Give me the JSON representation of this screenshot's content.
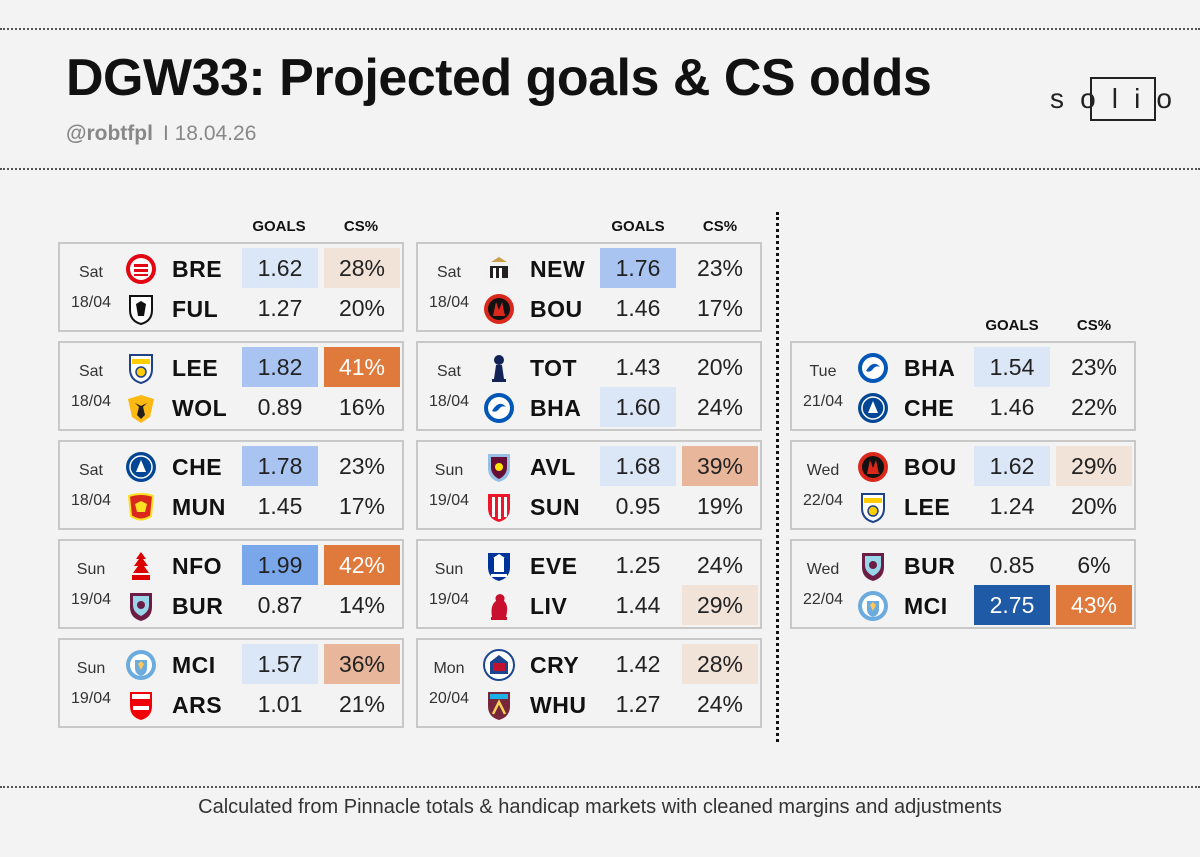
{
  "header": {
    "title": "DGW33: Projected goals & CS odds",
    "handle": "@robtfpl",
    "date": "18.04.26",
    "logo_letters": [
      "s",
      "o",
      "l",
      "i",
      "o"
    ]
  },
  "columns": {
    "goals": "GOALS",
    "cs": "CS%"
  },
  "footer": "Calculated from  Pinnacle totals & handicap markets with cleaned margins and adjustments",
  "colors": {
    "goals_light": "#dbe6f7",
    "goals_mid": "#a9c4f0",
    "goals_strong": "#7aa7ea",
    "goals_dark": "#1f5aa6",
    "cs_light": "#f2e3d9",
    "cs_mid": "#e8b69a",
    "cs_strong": "#e07a3c"
  },
  "fixtures": [
    {
      "day": "Sat",
      "date": "18/04",
      "teams": [
        {
          "code": "BRE",
          "crest": "brentford-crest",
          "goals": "1.62",
          "cs": "28%",
          "g_shade": "light",
          "c_shade": "light"
        },
        {
          "code": "FUL",
          "crest": "fulham-crest",
          "goals": "1.27",
          "cs": "20%",
          "g_shade": "",
          "c_shade": ""
        }
      ]
    },
    {
      "day": "Sat",
      "date": "18/04",
      "teams": [
        {
          "code": "LEE",
          "crest": "leeds-crest",
          "goals": "1.82",
          "cs": "41%",
          "g_shade": "mid",
          "c_shade": "strong"
        },
        {
          "code": "WOL",
          "crest": "wolves-crest",
          "goals": "0.89",
          "cs": "16%",
          "g_shade": "",
          "c_shade": ""
        }
      ]
    },
    {
      "day": "Sat",
      "date": "18/04",
      "teams": [
        {
          "code": "CHE",
          "crest": "chelsea-crest",
          "goals": "1.78",
          "cs": "23%",
          "g_shade": "mid",
          "c_shade": ""
        },
        {
          "code": "MUN",
          "crest": "man-utd-crest",
          "goals": "1.45",
          "cs": "17%",
          "g_shade": "",
          "c_shade": ""
        }
      ]
    },
    {
      "day": "Sun",
      "date": "19/04",
      "teams": [
        {
          "code": "NFO",
          "crest": "forest-crest",
          "goals": "1.99",
          "cs": "42%",
          "g_shade": "strong",
          "c_shade": "strong"
        },
        {
          "code": "BUR",
          "crest": "burnley-crest",
          "goals": "0.87",
          "cs": "14%",
          "g_shade": "",
          "c_shade": ""
        }
      ]
    },
    {
      "day": "Sun",
      "date": "19/04",
      "teams": [
        {
          "code": "MCI",
          "crest": "man-city-crest",
          "goals": "1.57",
          "cs": "36%",
          "g_shade": "light",
          "c_shade": "mid"
        },
        {
          "code": "ARS",
          "crest": "arsenal-crest",
          "goals": "1.01",
          "cs": "21%",
          "g_shade": "",
          "c_shade": ""
        }
      ]
    },
    {
      "day": "Sat",
      "date": "18/04",
      "teams": [
        {
          "code": "NEW",
          "crest": "newcastle-crest",
          "goals": "1.76",
          "cs": "23%",
          "g_shade": "mid",
          "c_shade": ""
        },
        {
          "code": "BOU",
          "crest": "bournemouth-crest",
          "goals": "1.46",
          "cs": "17%",
          "g_shade": "",
          "c_shade": ""
        }
      ]
    },
    {
      "day": "Sat",
      "date": "18/04",
      "teams": [
        {
          "code": "TOT",
          "crest": "spurs-crest",
          "goals": "1.43",
          "cs": "20%",
          "g_shade": "",
          "c_shade": ""
        },
        {
          "code": "BHA",
          "crest": "brighton-crest",
          "goals": "1.60",
          "cs": "24%",
          "g_shade": "light",
          "c_shade": ""
        }
      ]
    },
    {
      "day": "Sun",
      "date": "19/04",
      "teams": [
        {
          "code": "AVL",
          "crest": "villa-crest",
          "goals": "1.68",
          "cs": "39%",
          "g_shade": "light",
          "c_shade": "mid"
        },
        {
          "code": "SUN",
          "crest": "sunderland-crest",
          "goals": "0.95",
          "cs": "19%",
          "g_shade": "",
          "c_shade": ""
        }
      ]
    },
    {
      "day": "Sun",
      "date": "19/04",
      "teams": [
        {
          "code": "EVE",
          "crest": "everton-crest",
          "goals": "1.25",
          "cs": "24%",
          "g_shade": "",
          "c_shade": ""
        },
        {
          "code": "LIV",
          "crest": "liverpool-crest",
          "goals": "1.44",
          "cs": "29%",
          "g_shade": "",
          "c_shade": "light"
        }
      ]
    },
    {
      "day": "Mon",
      "date": "20/04",
      "teams": [
        {
          "code": "CRY",
          "crest": "palace-crest",
          "goals": "1.42",
          "cs": "28%",
          "g_shade": "",
          "c_shade": "light"
        },
        {
          "code": "WHU",
          "crest": "west-ham-crest",
          "goals": "1.27",
          "cs": "24%",
          "g_shade": "",
          "c_shade": ""
        }
      ]
    },
    {
      "day": "Tue",
      "date": "21/04",
      "teams": [
        {
          "code": "BHA",
          "crest": "brighton-crest",
          "goals": "1.54",
          "cs": "23%",
          "g_shade": "light",
          "c_shade": ""
        },
        {
          "code": "CHE",
          "crest": "chelsea-crest",
          "goals": "1.46",
          "cs": "22%",
          "g_shade": "",
          "c_shade": ""
        }
      ]
    },
    {
      "day": "Wed",
      "date": "22/04",
      "teams": [
        {
          "code": "BOU",
          "crest": "bournemouth-crest",
          "goals": "1.62",
          "cs": "29%",
          "g_shade": "light",
          "c_shade": "light"
        },
        {
          "code": "LEE",
          "crest": "leeds-crest",
          "goals": "1.24",
          "cs": "20%",
          "g_shade": "",
          "c_shade": ""
        }
      ]
    },
    {
      "day": "Wed",
      "date": "22/04",
      "teams": [
        {
          "code": "BUR",
          "crest": "burnley-crest",
          "goals": "0.85",
          "cs": "6%",
          "g_shade": "",
          "c_shade": ""
        },
        {
          "code": "MCI",
          "crest": "man-city-crest",
          "goals": "2.75",
          "cs": "43%",
          "g_shade": "dark",
          "c_shade": "strong"
        }
      ]
    }
  ]
}
